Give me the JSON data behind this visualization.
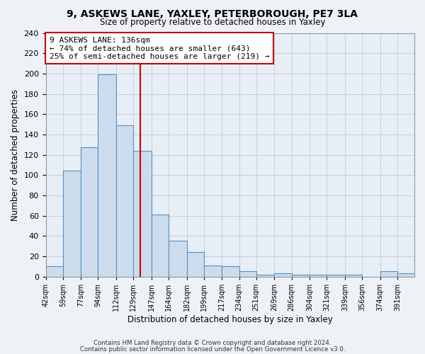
{
  "title": "9, ASKEWS LANE, YAXLEY, PETERBOROUGH, PE7 3LA",
  "subtitle": "Size of property relative to detached houses in Yaxley",
  "xlabel": "Distribution of detached houses by size in Yaxley",
  "ylabel": "Number of detached properties",
  "bar_labels": [
    "42sqm",
    "59sqm",
    "77sqm",
    "94sqm",
    "112sqm",
    "129sqm",
    "147sqm",
    "164sqm",
    "182sqm",
    "199sqm",
    "217sqm",
    "234sqm",
    "251sqm",
    "269sqm",
    "286sqm",
    "304sqm",
    "321sqm",
    "339sqm",
    "356sqm",
    "374sqm",
    "391sqm"
  ],
  "bar_edges": [
    42,
    59,
    77,
    94,
    112,
    129,
    147,
    164,
    182,
    199,
    217,
    234,
    251,
    269,
    286,
    304,
    321,
    339,
    356,
    374,
    391,
    408
  ],
  "bar_values": [
    10,
    104,
    127,
    199,
    149,
    124,
    61,
    35,
    24,
    11,
    10,
    5,
    2,
    3,
    2,
    2,
    2,
    2,
    0,
    5,
    3
  ],
  "bar_color": "#ccdcec",
  "bar_edge_color": "#5590c0",
  "vline_x": 136,
  "vline_color": "#cc0000",
  "annotation_text": "9 ASKEWS LANE: 136sqm\n← 74% of detached houses are smaller (643)\n25% of semi-detached houses are larger (219) →",
  "annotation_box_color": "#ffffff",
  "annotation_box_edge": "#cc0000",
  "ylim": [
    0,
    240
  ],
  "yticks": [
    0,
    20,
    40,
    60,
    80,
    100,
    120,
    140,
    160,
    180,
    200,
    220,
    240
  ],
  "footnote1": "Contains HM Land Registry data © Crown copyright and database right 2024.",
  "footnote2": "Contains public sector information licensed under the Open Government Licence v3.0.",
  "bg_color": "#eef2f7",
  "plot_bg_color": "#e8eef5",
  "grid_color": "#c0cad6"
}
